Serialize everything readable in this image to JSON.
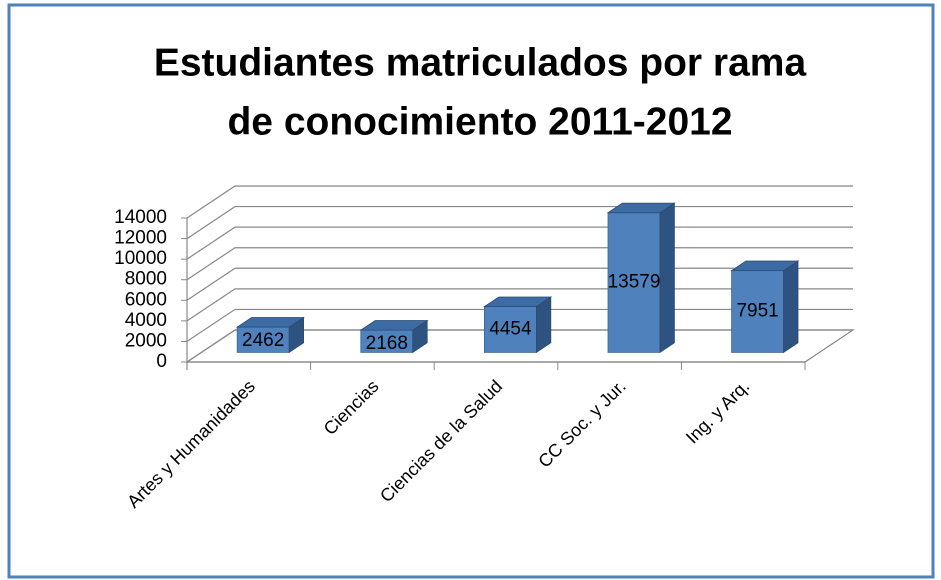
{
  "chart_data": {
    "type": "bar3d",
    "title": [
      "Estudiantes matriculados por rama",
      "de conocimiento 2011-2012"
    ],
    "categories": [
      "Artes y Humanidades",
      "Ciencias",
      "Ciencias de la Salud",
      "CC Soc. y Jur.",
      "Ing. y Arq."
    ],
    "values": [
      2462,
      2168,
      4454,
      13579,
      7951
    ],
    "color": "#4f81bd",
    "ylim": [
      0,
      14000
    ],
    "yticks": [
      0,
      2000,
      4000,
      6000,
      8000,
      10000,
      12000,
      14000
    ],
    "grid": true,
    "data_labels": true
  }
}
